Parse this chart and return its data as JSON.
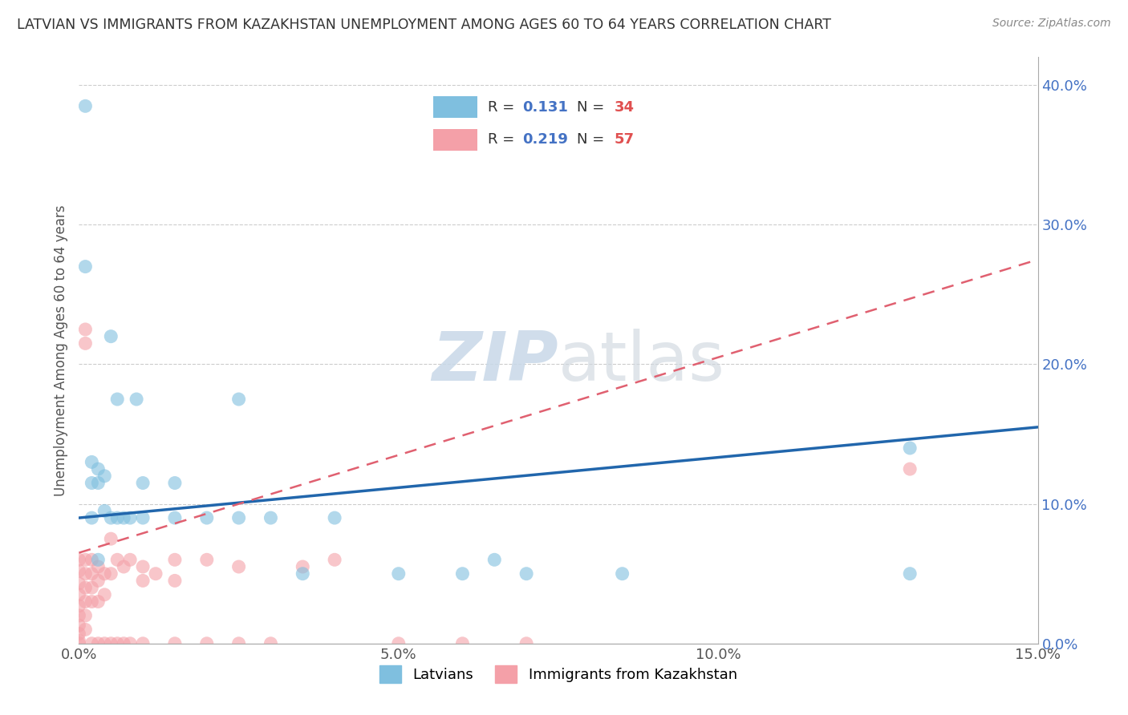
{
  "title": "LATVIAN VS IMMIGRANTS FROM KAZAKHSTAN UNEMPLOYMENT AMONG AGES 60 TO 64 YEARS CORRELATION CHART",
  "source": "Source: ZipAtlas.com",
  "ylabel": "Unemployment Among Ages 60 to 64 years",
  "xlim": [
    0.0,
    0.15
  ],
  "ylim": [
    0.0,
    0.42
  ],
  "latvians_R": 0.131,
  "latvians_N": 34,
  "kazakh_R": 0.219,
  "kazakh_N": 57,
  "latvian_color": "#7fbfdf",
  "kazakh_color": "#f4a0a8",
  "trendline_latvian_color": "#2166ac",
  "trendline_kazakh_color": "#e06070",
  "background_color": "#ffffff",
  "watermark_text": "ZIPatlas",
  "legend_label_latvian": "Latvians",
  "legend_label_kazakh": "Immigrants from Kazakhstan",
  "lat_x": [
    0.001,
    0.001,
    0.002,
    0.002,
    0.002,
    0.003,
    0.003,
    0.003,
    0.004,
    0.004,
    0.005,
    0.005,
    0.006,
    0.006,
    0.007,
    0.008,
    0.009,
    0.01,
    0.01,
    0.015,
    0.015,
    0.02,
    0.025,
    0.025,
    0.03,
    0.035,
    0.04,
    0.05,
    0.06,
    0.065,
    0.07,
    0.085,
    0.13,
    0.13
  ],
  "lat_y": [
    0.385,
    0.27,
    0.13,
    0.115,
    0.09,
    0.125,
    0.115,
    0.06,
    0.12,
    0.095,
    0.22,
    0.09,
    0.175,
    0.09,
    0.09,
    0.09,
    0.175,
    0.115,
    0.09,
    0.115,
    0.09,
    0.09,
    0.175,
    0.09,
    0.09,
    0.05,
    0.09,
    0.05,
    0.05,
    0.06,
    0.05,
    0.05,
    0.14,
    0.05
  ],
  "kaz_x": [
    0.0,
    0.0,
    0.0,
    0.0,
    0.0,
    0.0,
    0.0,
    0.0,
    0.0,
    0.0,
    0.001,
    0.001,
    0.001,
    0.001,
    0.001,
    0.001,
    0.001,
    0.001,
    0.002,
    0.002,
    0.002,
    0.002,
    0.002,
    0.003,
    0.003,
    0.003,
    0.003,
    0.004,
    0.004,
    0.004,
    0.005,
    0.005,
    0.005,
    0.006,
    0.006,
    0.007,
    0.007,
    0.008,
    0.008,
    0.01,
    0.01,
    0.01,
    0.012,
    0.015,
    0.015,
    0.015,
    0.02,
    0.02,
    0.025,
    0.025,
    0.03,
    0.035,
    0.04,
    0.05,
    0.06,
    0.07,
    0.13
  ],
  "kaz_y": [
    0.06,
    0.052,
    0.043,
    0.035,
    0.027,
    0.02,
    0.013,
    0.007,
    0.002,
    0.0,
    0.06,
    0.05,
    0.04,
    0.03,
    0.02,
    0.01,
    0.215,
    0.225,
    0.06,
    0.05,
    0.04,
    0.03,
    0.0,
    0.055,
    0.045,
    0.03,
    0.0,
    0.05,
    0.035,
    0.0,
    0.075,
    0.05,
    0.0,
    0.06,
    0.0,
    0.055,
    0.0,
    0.06,
    0.0,
    0.055,
    0.045,
    0.0,
    0.05,
    0.06,
    0.045,
    0.0,
    0.06,
    0.0,
    0.055,
    0.0,
    0.0,
    0.055,
    0.06,
    0.0,
    0.0,
    0.0,
    0.125
  ]
}
